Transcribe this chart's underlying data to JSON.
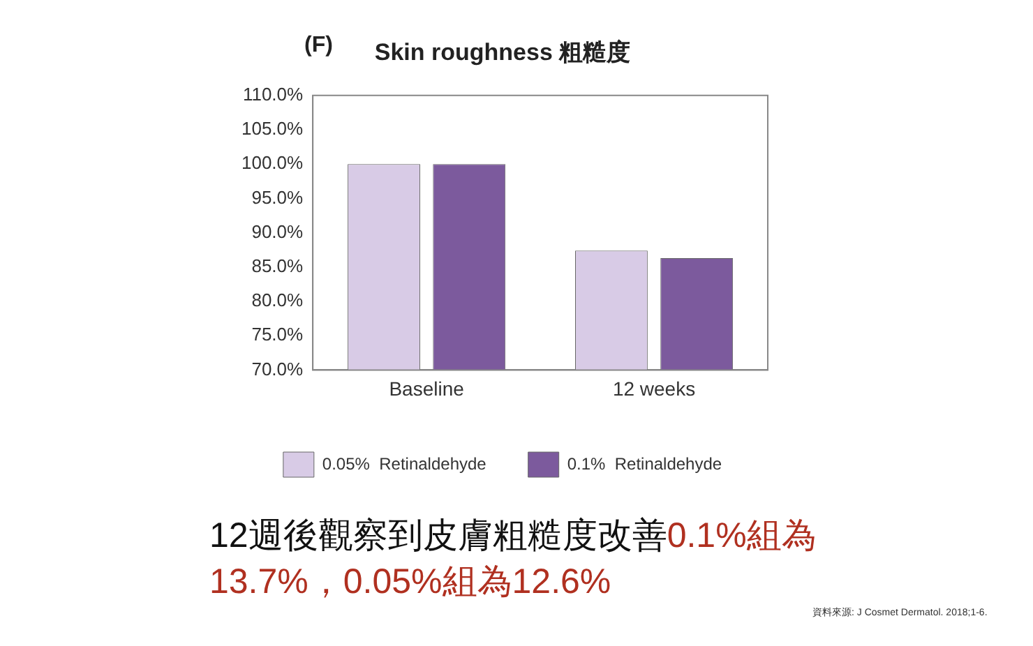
{
  "chart_data": {
    "type": "bar",
    "title": "Skin roughness 粗糙度",
    "categories": [
      "Baseline",
      "12 weeks"
    ],
    "series": [
      {
        "name": "0.05%  Retinaldehyde",
        "color": "#d8cbe6",
        "values": [
          100,
          87.4
        ]
      },
      {
        "name": "0.1%  Retinaldehyde",
        "color": "#7c5a9d",
        "values": [
          100,
          86.3
        ]
      }
    ],
    "ylim": [
      70,
      110
    ],
    "yticks": [
      {
        "value": 70,
        "label": "70.0%"
      },
      {
        "value": 75,
        "label": "75.0%"
      },
      {
        "value": 80,
        "label": "80.0%"
      },
      {
        "value": 85,
        "label": "85.0%"
      },
      {
        "value": 90,
        "label": "90.0%"
      },
      {
        "value": 95,
        "label": "95.0%"
      },
      {
        "value": 100,
        "label": "100.0%"
      },
      {
        "value": 105,
        "label": "105.0%"
      },
      {
        "value": 110,
        "label": "110.0%"
      }
    ],
    "grid": false,
    "legend": "bottom",
    "annotations": [
      "(F)",
      "12週後觀察到皮膚粗糙度改善",
      "0.1%組為13.7%，0.05%組為12.6%",
      "資料來源: J Cosmet Dermatol. 2018;1-6."
    ]
  }
}
